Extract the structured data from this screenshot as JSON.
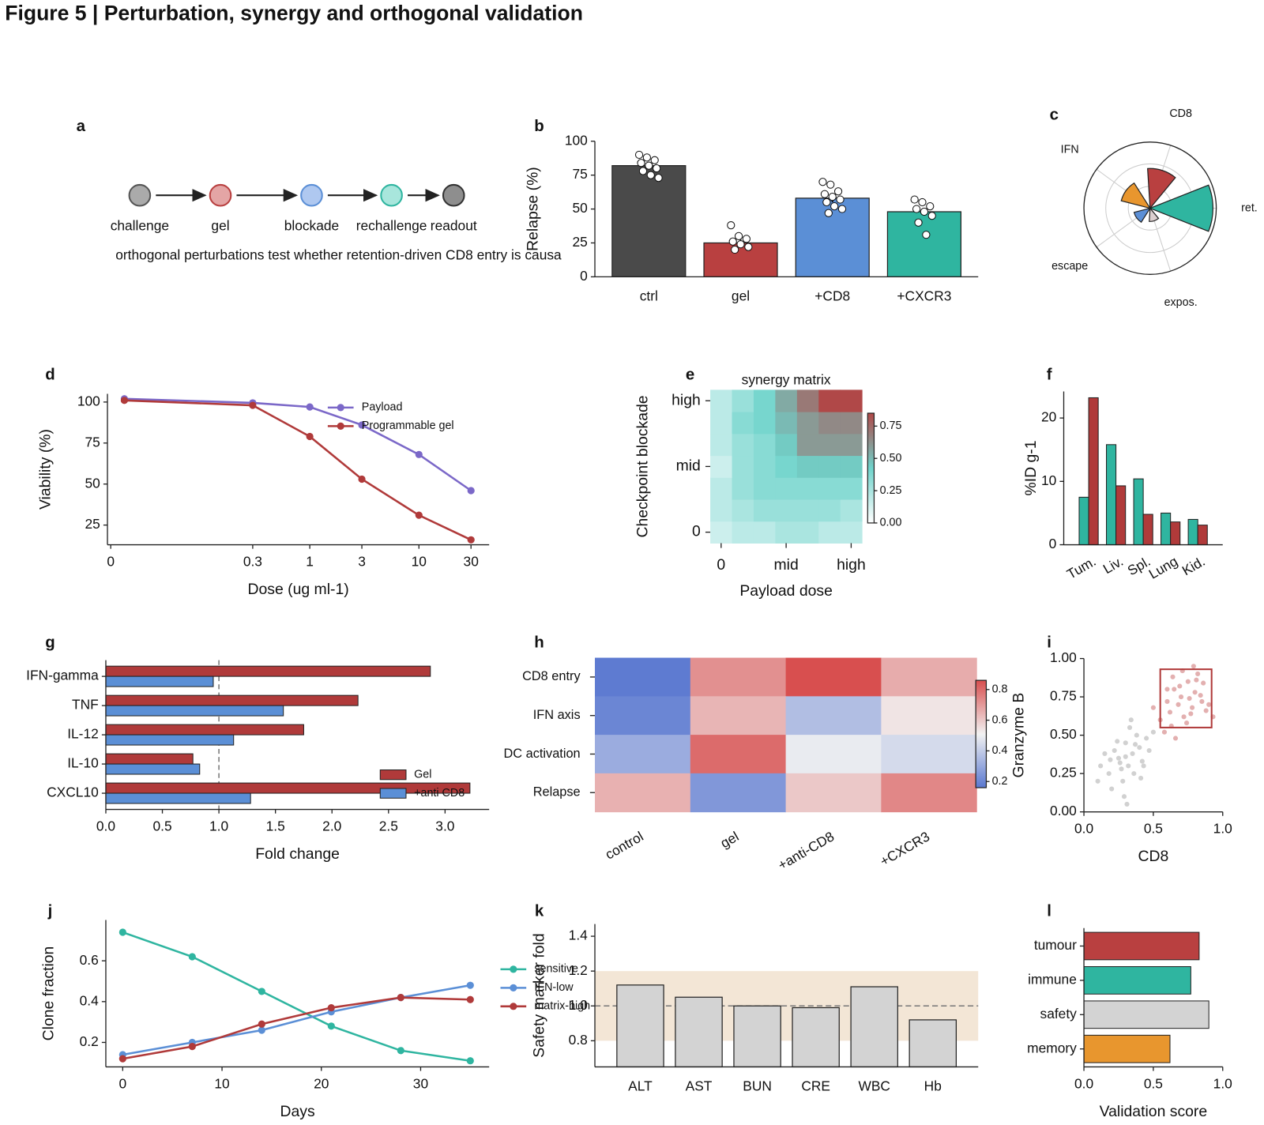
{
  "title": "Figure 5 | Perturbation, synergy and orthogonal validation",
  "chart_data": [
    {
      "type": "flow",
      "panel": "a",
      "nodes": [
        {
          "label": "challenge",
          "color": "#aaaaaa",
          "edgecolor": "#555555"
        },
        {
          "label": "gel",
          "color": "#e4a5a5",
          "edgecolor": "#b94040"
        },
        {
          "label": "blockade",
          "color": "#afc8f0",
          "edgecolor": "#5b8fd6"
        },
        {
          "label": "rechallenge",
          "color": "#a8e6dc",
          "edgecolor": "#2fb5a0"
        },
        {
          "label": "readout",
          "color": "#8e8e8e",
          "edgecolor": "#333333"
        }
      ],
      "caption": "orthogonal perturbations test whether retention-driven CD8 entry is causa"
    },
    {
      "type": "bar",
      "panel": "b",
      "categories": [
        "ctrl",
        "gel",
        "+CD8",
        "+CXCR3"
      ],
      "values": [
        82,
        25,
        58,
        48
      ],
      "errors": [
        2.5,
        2.5,
        3,
        2.5
      ],
      "colors": [
        "#4a4a4a",
        "#b94040",
        "#5b8fd6",
        "#2fb5a0"
      ],
      "points": [
        [
          90,
          88,
          86,
          84,
          82,
          80,
          78,
          75,
          73
        ],
        [
          38,
          30,
          28,
          26,
          24,
          22,
          20
        ],
        [
          70,
          68,
          63,
          61,
          59,
          57,
          55,
          52,
          50,
          47
        ],
        [
          57,
          55,
          52,
          50,
          48,
          45,
          40,
          31
        ]
      ],
      "ylabel": "Relapse (%)",
      "ylim": [
        0,
        100
      ],
      "yticks": [
        0,
        25,
        50,
        75,
        100
      ]
    },
    {
      "type": "polar",
      "panel": "c",
      "categories": [
        "ret.",
        "CD8",
        "IFN",
        "escape",
        "expos."
      ],
      "values": [
        0.95,
        0.6,
        0.45,
        0.25,
        0.2
      ],
      "colors": [
        "#2fb5a0",
        "#b94040",
        "#e8962e",
        "#5b8fd6",
        "#ddd0d0"
      ],
      "rlim": [
        0,
        1
      ],
      "rticks": [
        0.33,
        0.67
      ],
      "grid": true
    },
    {
      "type": "line",
      "panel": "d",
      "x": [
        0.02,
        0.3,
        1,
        3,
        10,
        30
      ],
      "series": [
        {
          "name": "Payload",
          "color": "#7b68c8",
          "values": [
            102,
            99.5,
            97,
            86,
            68,
            46
          ]
        },
        {
          "name": "Programmable gel",
          "color": "#b03a3a",
          "values": [
            101,
            98,
            79,
            53,
            31,
            16
          ]
        }
      ],
      "xlabel": "Dose (ug ml-1)",
      "ylabel": "Viability (%)",
      "xscale": "log",
      "xlim": [
        0.014,
        44
      ],
      "xticks": [
        {
          "value": 0.015,
          "label": "0"
        },
        0.3,
        1,
        3,
        10,
        30
      ],
      "ylim": [
        13,
        105
      ],
      "yticks": [
        25,
        50,
        75,
        100
      ],
      "legend": "upper right"
    },
    {
      "type": "heatmap",
      "panel": "e",
      "title": "synergy matrix",
      "values": [
        [
          0.15,
          0.2,
          0.2,
          0.25,
          0.25,
          0.2,
          0.2
        ],
        [
          0.2,
          0.25,
          0.3,
          0.3,
          0.3,
          0.3,
          0.25
        ],
        [
          0.2,
          0.3,
          0.35,
          0.35,
          0.35,
          0.35,
          0.35
        ],
        [
          0.15,
          0.3,
          0.35,
          0.4,
          0.45,
          0.45,
          0.45
        ],
        [
          0.2,
          0.3,
          0.35,
          0.45,
          0.6,
          0.6,
          0.6
        ],
        [
          0.2,
          0.35,
          0.4,
          0.5,
          0.6,
          0.65,
          0.65
        ],
        [
          0.2,
          0.3,
          0.4,
          0.55,
          0.7,
          0.85,
          0.85
        ]
      ],
      "xticks": [
        0,
        {
          "value": 3,
          "label": "mid"
        },
        {
          "value": 6,
          "label": "high"
        }
      ],
      "yticks": [
        0,
        {
          "value": 3,
          "label": "mid"
        },
        {
          "value": 6,
          "label": "high"
        }
      ],
      "xlabel": "Payload dose",
      "ylabel": "Checkpoint blockade",
      "colormap": [
        "#ffffff",
        "#6fd3cb",
        "#b04848"
      ],
      "clim": [
        0,
        0.85
      ],
      "cbar_ticks": [
        {
          "value": 0,
          "label": "0.00"
        },
        0.25,
        {
          "value": 0.5,
          "label": "0.50"
        },
        0.75
      ]
    },
    {
      "type": "grouped_bar",
      "panel": "f",
      "categories": [
        "Tum.",
        "Liv.",
        "Spl.",
        "Lung",
        "Kid."
      ],
      "series": [
        {
          "color": "#2fb5a0",
          "values": [
            7.5,
            15.8,
            10.4,
            5,
            4
          ]
        },
        {
          "color": "#b03a3a",
          "values": [
            23.2,
            9.3,
            4.8,
            3.6,
            3.1
          ]
        }
      ],
      "ylabel": "%ID g-1",
      "ylim": [
        0,
        24.2
      ],
      "yticks": [
        0,
        10,
        20
      ]
    },
    {
      "type": "hbar",
      "panel": "g",
      "categories": [
        "IFN-gamma",
        "TNF",
        "IL-12",
        "IL-10",
        "CXCL10"
      ],
      "series": [
        {
          "name": "Gel",
          "color": "#b03a3a",
          "values": [
            2.87,
            2.23,
            1.75,
            0.77,
            3.22
          ]
        },
        {
          "name": "+anti CD8",
          "color": "#5b8fd6",
          "values": [
            0.95,
            1.57,
            1.13,
            0.83,
            1.28
          ]
        }
      ],
      "xlabel": "Fold change",
      "xlim": [
        0,
        3.39
      ],
      "xticks": [
        {
          "value": 0,
          "label": "0.0"
        },
        0.5,
        {
          "value": 1,
          "label": "1.0"
        },
        1.5,
        {
          "value": 2,
          "label": "2.0"
        },
        2.5,
        {
          "value": 3,
          "label": "3.0"
        }
      ],
      "refline": 1,
      "legend": "lower right"
    },
    {
      "type": "heatmap",
      "panel": "h",
      "categories": [
        "control",
        "gel",
        "+anti-CD8",
        "+CXCR3"
      ],
      "rows": [
        "CD8 entry",
        "IFN axis",
        "DC activation",
        "Relapse"
      ],
      "values": [
        [
          0.17,
          0.72,
          0.86,
          0.66
        ],
        [
          0.2,
          0.64,
          0.36,
          0.54
        ],
        [
          0.31,
          0.8,
          0.49,
          0.44
        ],
        [
          0.65,
          0.25,
          0.6,
          0.74
        ]
      ],
      "colormap": [
        "#5a78d0",
        "#f2f2f2",
        "#d84f4f"
      ],
      "clim": [
        0.16,
        0.86
      ],
      "cbar_ticks": [
        0.2,
        0.4,
        0.6,
        0.8
      ]
    },
    {
      "type": "scatter",
      "panel": "i",
      "series": [
        {
          "color": "#9a9a9a",
          "x": [
            0.12,
            0.18,
            0.22,
            0.25,
            0.28,
            0.3,
            0.32,
            0.35,
            0.38,
            0.4,
            0.42,
            0.45,
            0.2,
            0.27,
            0.33,
            0.36,
            0.15,
            0.24,
            0.3,
            0.41,
            0.47,
            0.5,
            0.1,
            0.29,
            0.37,
            0.26,
            0.34,
            0.43,
            0.19,
            0.31
          ],
          "y": [
            0.3,
            0.25,
            0.4,
            0.35,
            0.2,
            0.45,
            0.3,
            0.38,
            0.5,
            0.42,
            0.33,
            0.48,
            0.15,
            0.28,
            0.55,
            0.25,
            0.38,
            0.46,
            0.36,
            0.22,
            0.4,
            0.52,
            0.2,
            0.1,
            0.44,
            0.32,
            0.6,
            0.3,
            0.34,
            0.05
          ]
        },
        {
          "color": "#c05050",
          "x": [
            0.55,
            0.6,
            0.62,
            0.65,
            0.68,
            0.7,
            0.72,
            0.75,
            0.78,
            0.8,
            0.82,
            0.85,
            0.88,
            0.58,
            0.64,
            0.69,
            0.74,
            0.79,
            0.84,
            0.9,
            0.66,
            0.71,
            0.76,
            0.6,
            0.86,
            0.93,
            0.5,
            0.63,
            0.77,
            0.81
          ],
          "y": [
            0.6,
            0.72,
            0.65,
            0.8,
            0.7,
            0.75,
            0.62,
            0.85,
            0.68,
            0.78,
            0.9,
            0.72,
            0.66,
            0.52,
            0.88,
            0.82,
            0.58,
            0.95,
            0.76,
            0.7,
            0.48,
            0.92,
            0.74,
            0.8,
            0.84,
            0.62,
            0.68,
            0.56,
            0.64,
            0.86
          ]
        }
      ],
      "gate": {
        "x": [
          0.55,
          0.92
        ],
        "y": [
          0.55,
          0.93
        ]
      },
      "gate_color": "#b03a3a",
      "xlabel": "CD8",
      "ylabel": "Granzyme B",
      "xlim": [
        0,
        1
      ],
      "ylim": [
        0,
        1
      ],
      "xticks": [
        {
          "value": 0,
          "label": "0.0"
        },
        0.5,
        {
          "value": 1,
          "label": "1.0"
        }
      ],
      "yticks": [
        {
          "value": 0,
          "label": "0.00"
        },
        0.25,
        {
          "value": 0.5,
          "label": "0.50"
        },
        0.75,
        {
          "value": 1,
          "label": "1.00"
        }
      ]
    },
    {
      "type": "line",
      "panel": "j",
      "x": [
        0,
        7,
        14,
        21,
        28,
        35
      ],
      "series": [
        {
          "name": "sensitive",
          "color": "#2fb5a0",
          "values": [
            0.74,
            0.62,
            0.45,
            0.28,
            0.16,
            0.11
          ]
        },
        {
          "name": "IFN-low",
          "color": "#5b8fd6",
          "values": [
            0.14,
            0.2,
            0.26,
            0.35,
            0.42,
            0.48
          ]
        },
        {
          "name": "matrix-high",
          "color": "#b03a3a",
          "values": [
            0.12,
            0.18,
            0.29,
            0.37,
            0.42,
            0.41
          ]
        }
      ],
      "xlabel": "Days",
      "ylabel": "Clone fraction",
      "xlim": [
        -1.7,
        36.9
      ],
      "xticks": [
        0,
        10,
        20,
        30
      ],
      "ylim": [
        0.08,
        0.8
      ],
      "yticks": [
        0.2,
        0.4,
        0.6
      ],
      "legend": "outside right"
    },
    {
      "type": "bar",
      "panel": "k",
      "categories": [
        "ALT",
        "AST",
        "BUN",
        "CRE",
        "WBC",
        "Hb"
      ],
      "values": [
        1.12,
        1.05,
        1.0,
        0.99,
        1.11,
        0.92
      ],
      "color": "#d3d3d3",
      "band": [
        0.8,
        1.2
      ],
      "band_color": "#f3e6d6",
      "refline": 1,
      "ylabel": "Safety marker fold",
      "ylim": [
        0.65,
        1.47
      ],
      "yticks": [
        0.8,
        {
          "value": 1,
          "label": "1.0"
        },
        1.2,
        1.4
      ]
    },
    {
      "type": "hbar",
      "panel": "l",
      "categories": [
        "tumour",
        "immune",
        "safety",
        "memory"
      ],
      "values": [
        0.83,
        0.77,
        0.9,
        0.62
      ],
      "colors": [
        "#b94040",
        "#2fb5a0",
        "#d3d3d3",
        "#e8962e"
      ],
      "xlabel": "Validation score",
      "xlim": [
        0,
        1
      ],
      "xticks": [
        {
          "value": 0,
          "label": "0.0"
        },
        0.5,
        {
          "value": 1,
          "label": "1.0"
        }
      ]
    }
  ]
}
